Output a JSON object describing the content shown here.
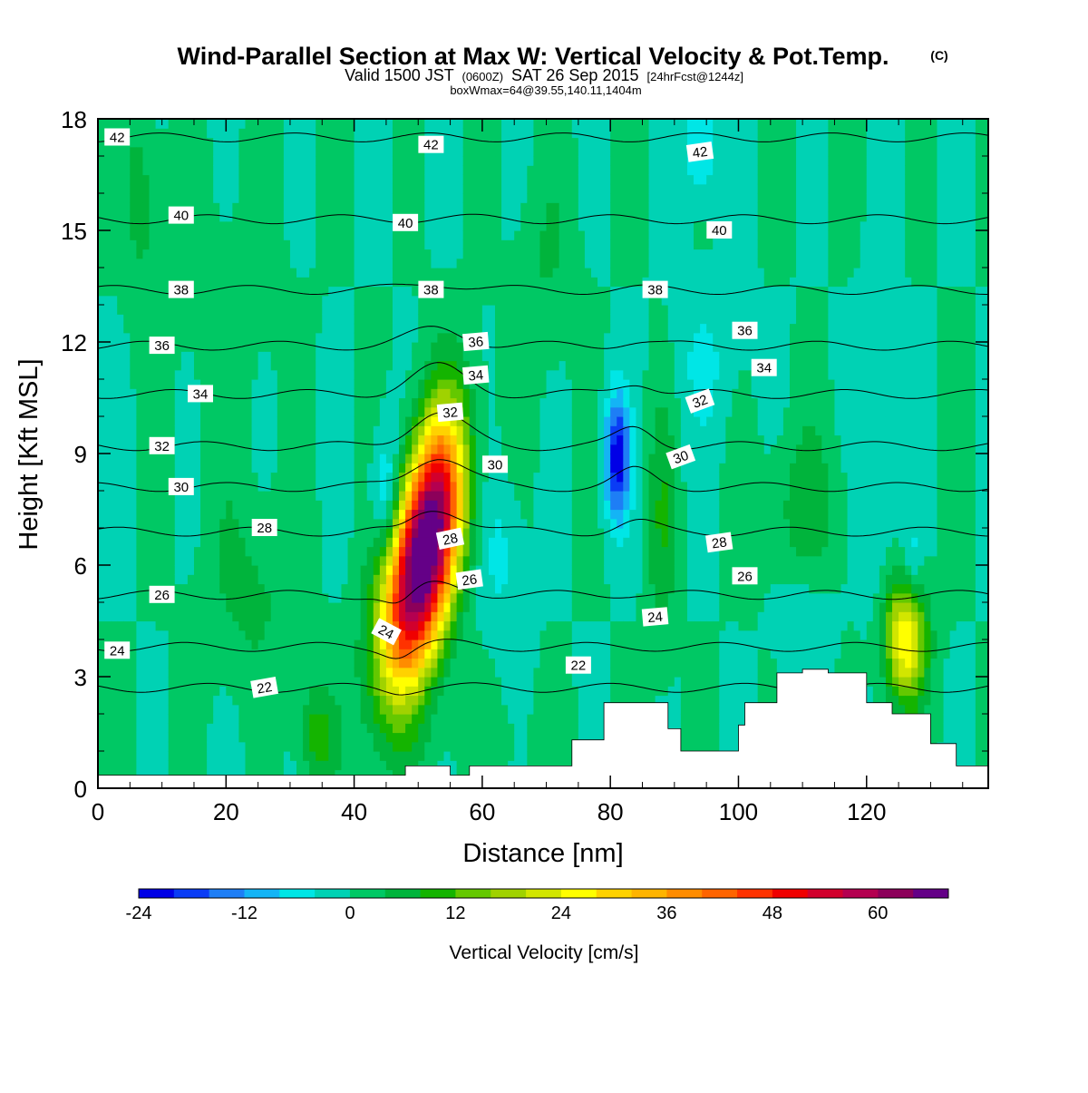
{
  "chart_data": {
    "type": "heatmap",
    "title": "Wind-Parallel Section at Max W: Vertical Velocity & Pot.Temp.",
    "title_mark": "(C)",
    "subtitle": {
      "main_a": "Valid 1500 JST",
      "small_a": "(0600Z)",
      "main_b": "SAT 26 Sep 2015",
      "small_b": "[24hrFcst@1244z]"
    },
    "subtitle2": "boxWmax=64@39.55,140.11,1404m",
    "xlabel": "Distance [nm]",
    "ylabel": "Height [Kft MSL]",
    "xlim": [
      0,
      139
    ],
    "ylim": [
      0,
      18
    ],
    "x_ticks": [
      "0",
      "20",
      "40",
      "60",
      "80",
      "100",
      "120"
    ],
    "y_ticks": [
      "0",
      "3",
      "6",
      "9",
      "12",
      "15",
      "18"
    ],
    "colorbar": {
      "label": "Vertical Velocity [cm/s]",
      "ticks": [
        "-24",
        "-12",
        "0",
        "12",
        "24",
        "36",
        "48",
        "60"
      ],
      "min": -24,
      "max": 68,
      "step": 4,
      "colors": [
        "#0000e6",
        "#0a3cf5",
        "#1e7ef5",
        "#14b4f5",
        "#00e6e6",
        "#00d2b4",
        "#00c864",
        "#00b43c",
        "#14b400",
        "#64c800",
        "#a0d200",
        "#d2e600",
        "#ffff00",
        "#ffd200",
        "#ffb400",
        "#ff8c00",
        "#ff6400",
        "#ff3200",
        "#f00000",
        "#d2002d",
        "#b40050",
        "#8c005a",
        "#640087"
      ]
    },
    "background_value": 0,
    "velocity_features": [
      {
        "x": 50,
        "y": 5.8,
        "sx": 3.6,
        "sy": 2.2,
        "tilt": 0.22,
        "amp": 64
      },
      {
        "x": 53,
        "y": 8.0,
        "sx": 3.0,
        "sy": 2.0,
        "tilt": 0.1,
        "amp": 22
      },
      {
        "x": 126,
        "y": 4.0,
        "sx": 2.3,
        "sy": 1.2,
        "tilt": 0.0,
        "amp": 28
      },
      {
        "x": 81,
        "y": 8.9,
        "sx": 1.4,
        "sy": 1.2,
        "tilt": 0.0,
        "amp": -22
      },
      {
        "x": 45,
        "y": 7.8,
        "sx": 1.6,
        "sy": 1.3,
        "tilt": 0.0,
        "amp": -12
      },
      {
        "x": 94,
        "y": 17.3,
        "sx": 1.8,
        "sy": 1.0,
        "tilt": 0.0,
        "amp": -10
      },
      {
        "x": 34,
        "y": 1.4,
        "sx": 2.0,
        "sy": 1.0,
        "tilt": 0.0,
        "amp": 10
      },
      {
        "x": 88,
        "y": 7.0,
        "sx": 1.5,
        "sy": 2.5,
        "tilt": 0.0,
        "amp": 7
      },
      {
        "x": 7,
        "y": 16.0,
        "sx": 2.0,
        "sy": 2.0,
        "tilt": 0.0,
        "amp": 6
      },
      {
        "x": 24,
        "y": 5.3,
        "sx": 5.0,
        "sy": 1.8,
        "tilt": 0.0,
        "amp": 5
      },
      {
        "x": 110,
        "y": 7.5,
        "sx": 5.0,
        "sy": 1.5,
        "tilt": 0.0,
        "amp": 6
      },
      {
        "x": 122,
        "y": 9.0,
        "sx": 2.0,
        "sy": 3.0,
        "tilt": 0.0,
        "amp": -6
      },
      {
        "x": 63,
        "y": 6.3,
        "sx": 2.5,
        "sy": 1.5,
        "tilt": 0.0,
        "amp": -5
      },
      {
        "x": 110,
        "y": 4.5,
        "sx": 3.0,
        "sy": 1.2,
        "tilt": 0.0,
        "amp": -4
      },
      {
        "x": 127,
        "y": 6.0,
        "sx": 1.2,
        "sy": 0.8,
        "tilt": 0.0,
        "amp": -7
      },
      {
        "x": 20,
        "y": 12.5,
        "sx": 6.0,
        "sy": 3.0,
        "tilt": 0.0,
        "amp": 2
      },
      {
        "x": 70,
        "y": 14.0,
        "sx": 3.0,
        "sy": 2.0,
        "tilt": 0.0,
        "amp": 4
      },
      {
        "x": 95,
        "y": 11.5,
        "sx": 4.0,
        "sy": 1.5,
        "tilt": 0.0,
        "amp": -4
      },
      {
        "x": 60,
        "y": 1.2,
        "sx": 12.0,
        "sy": 0.8,
        "tilt": 0.0,
        "amp": 2
      }
    ],
    "theta_isolines": [
      {
        "label": "22",
        "z": 2.7
      },
      {
        "label": "24",
        "z": 3.8
      },
      {
        "label": "26",
        "z": 5.2
      },
      {
        "label": "28",
        "z": 6.9
      },
      {
        "label": "30",
        "z": 8.1
      },
      {
        "label": "32",
        "z": 9.2
      },
      {
        "label": "34",
        "z": 10.6
      },
      {
        "label": "36",
        "z": 11.9
      },
      {
        "label": "38",
        "z": 13.4
      },
      {
        "label": "40",
        "z": 15.3
      },
      {
        "label": "42",
        "z": 17.5
      }
    ],
    "isoline_labels": [
      {
        "text": "42",
        "x": 3,
        "y": 17.5,
        "rot": 0
      },
      {
        "text": "42",
        "x": 52,
        "y": 17.3,
        "rot": 0
      },
      {
        "text": "42",
        "x": 94,
        "y": 17.1,
        "rot": -8
      },
      {
        "text": "40",
        "x": 13,
        "y": 15.4,
        "rot": 0
      },
      {
        "text": "40",
        "x": 48,
        "y": 15.2,
        "rot": 0
      },
      {
        "text": "40",
        "x": 97,
        "y": 15.0,
        "rot": 0
      },
      {
        "text": "38",
        "x": 13,
        "y": 13.4,
        "rot": 0
      },
      {
        "text": "38",
        "x": 52,
        "y": 13.4,
        "rot": 0
      },
      {
        "text": "38",
        "x": 87,
        "y": 13.4,
        "rot": 0
      },
      {
        "text": "36",
        "x": 10,
        "y": 11.9,
        "rot": 0
      },
      {
        "text": "36",
        "x": 59,
        "y": 12.0,
        "rot": -5
      },
      {
        "text": "36",
        "x": 101,
        "y": 12.3,
        "rot": 0
      },
      {
        "text": "34",
        "x": 16,
        "y": 10.6,
        "rot": 0
      },
      {
        "text": "34",
        "x": 59,
        "y": 11.1,
        "rot": -5
      },
      {
        "text": "34",
        "x": 104,
        "y": 11.3,
        "rot": 0
      },
      {
        "text": "32",
        "x": 10,
        "y": 9.2,
        "rot": 0
      },
      {
        "text": "32",
        "x": 55,
        "y": 10.1,
        "rot": -5
      },
      {
        "text": "32",
        "x": 94,
        "y": 10.4,
        "rot": -20
      },
      {
        "text": "30",
        "x": 13,
        "y": 8.1,
        "rot": 0
      },
      {
        "text": "30",
        "x": 62,
        "y": 8.7,
        "rot": 0
      },
      {
        "text": "30",
        "x": 91,
        "y": 8.9,
        "rot": -20
      },
      {
        "text": "28",
        "x": 26,
        "y": 7.0,
        "rot": 0
      },
      {
        "text": "28",
        "x": 55,
        "y": 6.7,
        "rot": -12
      },
      {
        "text": "28",
        "x": 97,
        "y": 6.6,
        "rot": -8
      },
      {
        "text": "26",
        "x": 10,
        "y": 5.2,
        "rot": 0
      },
      {
        "text": "26",
        "x": 58,
        "y": 5.6,
        "rot": -8
      },
      {
        "text": "26",
        "x": 101,
        "y": 5.7,
        "rot": 0
      },
      {
        "text": "24",
        "x": 3,
        "y": 3.7,
        "rot": 0
      },
      {
        "text": "24",
        "x": 45,
        "y": 4.2,
        "rot": 28
      },
      {
        "text": "24",
        "x": 87,
        "y": 4.6,
        "rot": -5
      },
      {
        "text": "22",
        "x": 26,
        "y": 2.7,
        "rot": -10
      },
      {
        "text": "22",
        "x": 75,
        "y": 3.3,
        "rot": 0
      }
    ],
    "terrain": [
      [
        0,
        0.35
      ],
      [
        36,
        0.35
      ],
      [
        48,
        0.6
      ],
      [
        55,
        0.35
      ],
      [
        58,
        0.6
      ],
      [
        71,
        0.6
      ],
      [
        74,
        1.3
      ],
      [
        79,
        2.3
      ],
      [
        84,
        2.3
      ],
      [
        89,
        1.6
      ],
      [
        91,
        1.0
      ],
      [
        97,
        1.0
      ],
      [
        100,
        1.7
      ],
      [
        101,
        2.3
      ],
      [
        106,
        3.1
      ],
      [
        110,
        3.2
      ],
      [
        114,
        3.1
      ],
      [
        120,
        2.3
      ],
      [
        124,
        2.0
      ],
      [
        130,
        1.2
      ],
      [
        134,
        0.6
      ],
      [
        139,
        0.65
      ]
    ]
  }
}
